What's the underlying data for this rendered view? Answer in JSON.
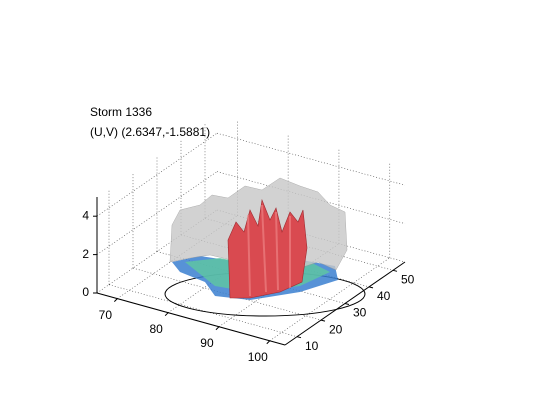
{
  "chart_data": {
    "type": "isosurface",
    "title": "Storm 1336",
    "subtitle": "(U,V) (2.6347,-1.5881)",
    "xlim": [
      66,
      103
    ],
    "xticks": [
      70,
      80,
      90,
      100
    ],
    "ylim": [
      5,
      55
    ],
    "yticks": [
      10,
      20,
      30,
      40,
      50
    ],
    "zlim": [
      0,
      5
    ],
    "zticks": [
      0,
      2,
      4
    ],
    "grid": true
  }
}
